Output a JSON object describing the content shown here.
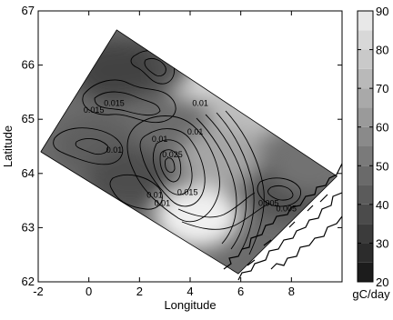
{
  "chart_data": {
    "type": "heatmap",
    "title": "",
    "xlabel": "Longitude",
    "ylabel": "Latitude",
    "xlim": [
      -2,
      10
    ],
    "ylim": [
      62,
      67
    ],
    "x_ticks": [
      -2,
      0,
      2,
      4,
      6,
      8
    ],
    "y_ticks": [
      62,
      63,
      64,
      65,
      66,
      67
    ],
    "colorbar": {
      "label": "gC/day",
      "range": [
        20,
        90
      ],
      "ticks": [
        20,
        30,
        40,
        50,
        60,
        70,
        80,
        90
      ],
      "colormap": "grayscale (dark = low, light = high)",
      "low_color": "#141414",
      "high_color": "#f0f0f0"
    },
    "domain_corners": [
      {
        "lon": -1.9,
        "lat": 64.4
      },
      {
        "lon": 1.1,
        "lat": 66.65
      },
      {
        "lon": 9.8,
        "lat": 63.95
      },
      {
        "lon": 5.9,
        "lat": 62.15
      }
    ],
    "field_blobs": [
      {
        "lon": 4.3,
        "lat": 63.2,
        "value": 90
      },
      {
        "lon": 4.3,
        "lat": 65.9,
        "value": 83
      },
      {
        "lon": 6.3,
        "lat": 65.2,
        "value": 74
      },
      {
        "lon": 5.2,
        "lat": 64.3,
        "value": 66
      },
      {
        "lon": 2.5,
        "lat": 66.0,
        "value": 40
      },
      {
        "lon": 1.0,
        "lat": 65.9,
        "value": 35
      },
      {
        "lon": 0.3,
        "lat": 64.5,
        "value": 44
      },
      {
        "lon": 1.6,
        "lat": 63.9,
        "value": 38
      },
      {
        "lon": 7.8,
        "lat": 63.7,
        "value": 40
      },
      {
        "lon": 8.8,
        "lat": 64.2,
        "value": 50
      }
    ],
    "contour_labels": [
      {
        "text": "0.015",
        "lon": 1.0,
        "lat": 65.25
      },
      {
        "text": "0.015",
        "lon": 0.2,
        "lat": 65.12
      },
      {
        "text": "0.01",
        "lon": 4.4,
        "lat": 65.25
      },
      {
        "text": "0.01",
        "lon": 4.2,
        "lat": 64.72
      },
      {
        "text": "0.01",
        "lon": 2.8,
        "lat": 64.58
      },
      {
        "text": "0.025",
        "lon": 3.3,
        "lat": 64.3
      },
      {
        "text": "0.01",
        "lon": 1.0,
        "lat": 64.38
      },
      {
        "text": "0.01",
        "lon": 2.6,
        "lat": 63.55
      },
      {
        "text": "0.01",
        "lon": 2.9,
        "lat": 63.4
      },
      {
        "text": "0.015",
        "lon": 3.9,
        "lat": 63.6
      },
      {
        "text": "0.005",
        "lon": 7.1,
        "lat": 63.4
      },
      {
        "text": "0.005",
        "lon": 7.8,
        "lat": 63.3
      }
    ]
  }
}
